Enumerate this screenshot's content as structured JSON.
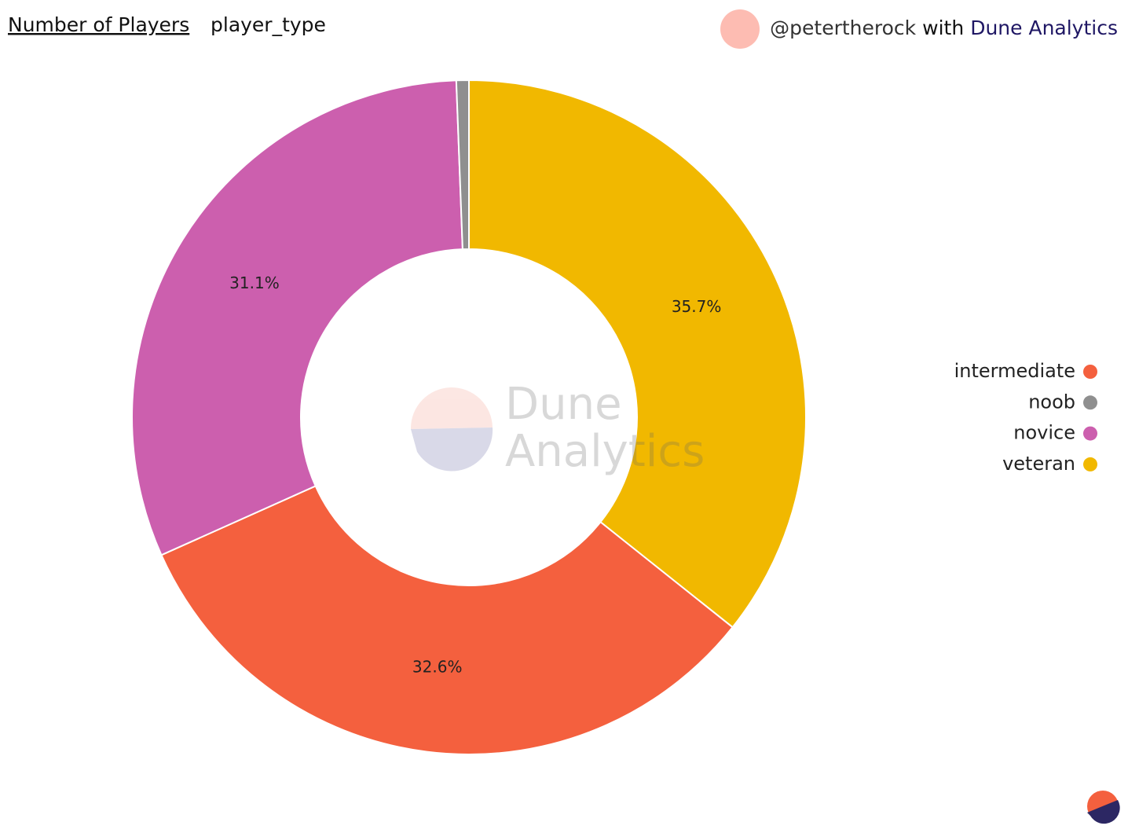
{
  "chart_data": {
    "type": "donut",
    "title": "Number of Players",
    "subtitle": "player_type",
    "categories": [
      "intermediate",
      "noob",
      "novice",
      "veteran"
    ],
    "values": [
      32.6,
      0.6,
      31.1,
      35.7
    ],
    "value_labels": [
      "32.6%",
      null,
      "31.1%",
      "35.7%"
    ],
    "colors": [
      "#f4603e",
      "#8f8f8f",
      "#cc5fae",
      "#f1b800"
    ],
    "sort": "descending",
    "legend": "right"
  },
  "header": {
    "user": "@petertherock",
    "with": "with",
    "brand": "Dune Analytics"
  },
  "watermark": {
    "line1": "Dune",
    "line2": "Analytics"
  }
}
